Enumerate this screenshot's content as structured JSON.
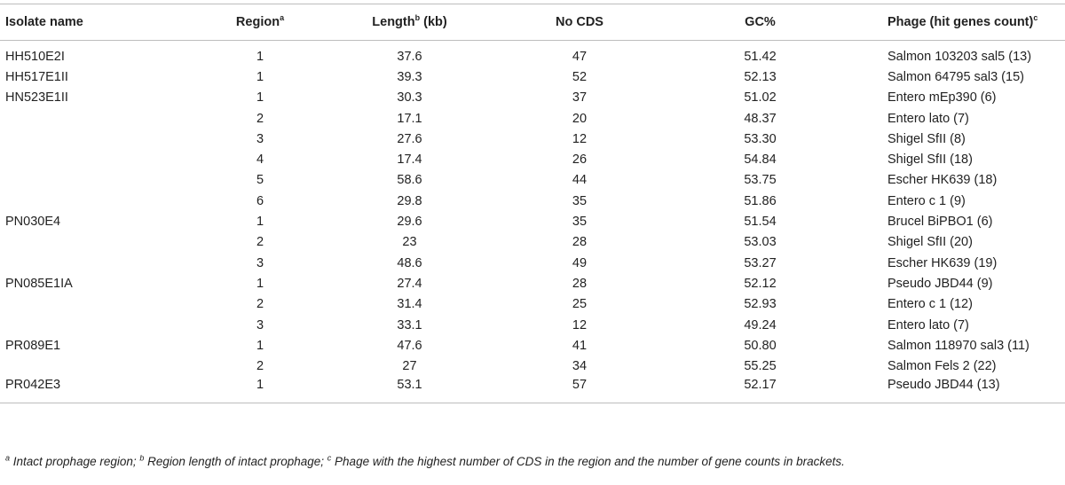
{
  "headers": {
    "isolate": "Isolate name",
    "region": "Region",
    "region_sup": "a",
    "length": "Length",
    "length_sup": "b",
    "length_unit": " (kb)",
    "cds": "No CDS",
    "gc": "GC%",
    "phage": "Phage (hit genes count)",
    "phage_sup": "c"
  },
  "rows": [
    {
      "isolate": "HH510E2I",
      "region": "1",
      "length": "37.6",
      "cds": "47",
      "gc": "51.42",
      "phage": "Salmon 103203 sal5 (13)"
    },
    {
      "isolate": "HH517E1II",
      "region": "1",
      "length": "39.3",
      "cds": "52",
      "gc": "52.13",
      "phage": "Salmon 64795 sal3 (15)"
    },
    {
      "isolate": "HN523E1II",
      "region": "1",
      "length": "30.3",
      "cds": "37",
      "gc": "51.02",
      "phage": "Entero mEp390 (6)"
    },
    {
      "isolate": "",
      "region": "2",
      "length": "17.1",
      "cds": "20",
      "gc": "48.37",
      "phage": "Entero lato (7)"
    },
    {
      "isolate": "",
      "region": "3",
      "length": "27.6",
      "cds": "12",
      "gc": "53.30",
      "phage": "Shigel SfII (8)"
    },
    {
      "isolate": "",
      "region": "4",
      "length": "17.4",
      "cds": "26",
      "gc": "54.84",
      "phage": "Shigel SfII (18)"
    },
    {
      "isolate": "",
      "region": "5",
      "length": "58.6",
      "cds": "44",
      "gc": "53.75",
      "phage": "Escher HK639 (18)"
    },
    {
      "isolate": "",
      "region": "6",
      "length": "29.8",
      "cds": "35",
      "gc": "51.86",
      "phage": "Entero c 1 (9)"
    },
    {
      "isolate": "PN030E4",
      "region": "1",
      "length": "29.6",
      "cds": "35",
      "gc": "51.54",
      "phage": "Brucel BiPBO1 (6)"
    },
    {
      "isolate": "",
      "region": "2",
      "length": "23",
      "cds": "28",
      "gc": "53.03",
      "phage": "Shigel SfII (20)"
    },
    {
      "isolate": "",
      "region": "3",
      "length": "48.6",
      "cds": "49",
      "gc": "53.27",
      "phage": "Escher HK639 (19)"
    },
    {
      "isolate": "PN085E1IA",
      "region": "1",
      "length": "27.4",
      "cds": "28",
      "gc": "52.12",
      "phage": "Pseudo JBD44 (9)"
    },
    {
      "isolate": "",
      "region": "2",
      "length": "31.4",
      "cds": "25",
      "gc": "52.93",
      "phage": "Entero c 1 (12)"
    },
    {
      "isolate": "",
      "region": "3",
      "length": "33.1",
      "cds": "12",
      "gc": "49.24",
      "phage": "Entero lato (7)"
    },
    {
      "isolate": "PR089E1",
      "region": "1",
      "length": "47.6",
      "cds": "41",
      "gc": "50.80",
      "phage": "Salmon 118970 sal3 (11)"
    },
    {
      "isolate": "",
      "region": "2",
      "length": "27",
      "cds": "34",
      "gc": "55.25",
      "phage": "Salmon Fels 2 (22)"
    },
    {
      "isolate": "PR042E3",
      "region": "1",
      "length": "53.1",
      "cds": "57",
      "gc": "52.17",
      "phage": "Pseudo JBD44 (13)"
    }
  ],
  "footnote": {
    "a_mark": "a",
    "a_text": " Intact prophage region; ",
    "b_mark": "b",
    "b_text": " Region length of intact prophage; ",
    "c_mark": "c",
    "c_text": " Phage with the highest number of CDS in the region and the number of gene counts in brackets."
  }
}
